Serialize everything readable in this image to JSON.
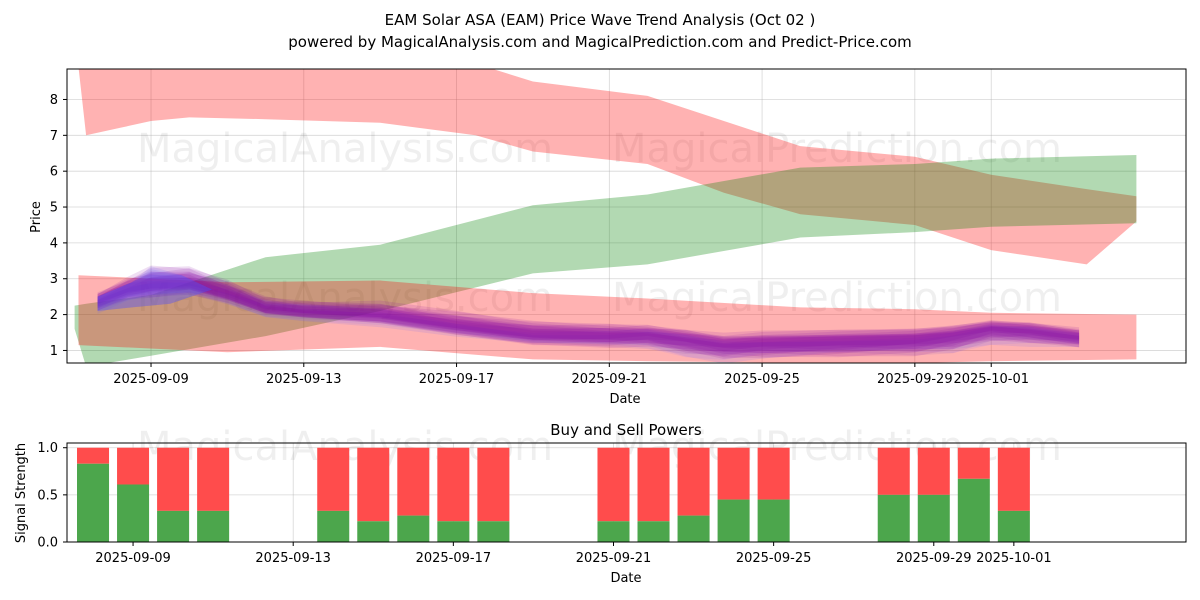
{
  "chart_data": [
    {
      "type": "area",
      "title": "EAM Solar ASA (EAM) Price Wave Trend Analysis (Oct 02 )",
      "subtitle": "powered by MagicalAnalysis.com and MagicalPrediction.com and Predict-Price.com",
      "xlabel": "Date",
      "ylabel": "Price",
      "ylim": [
        0.65,
        8.85
      ],
      "xlim": [
        -2.2,
        27.1
      ],
      "date_origin": "2025-09-09",
      "yticks": [
        1,
        2,
        3,
        4,
        5,
        6,
        7,
        8
      ],
      "xticks": [
        {
          "day": 0,
          "label": "2025-09-09"
        },
        {
          "day": 4,
          "label": "2025-09-13"
        },
        {
          "day": 8,
          "label": "2025-09-17"
        },
        {
          "day": 12,
          "label": "2025-09-21"
        },
        {
          "day": 16,
          "label": "2025-09-25"
        },
        {
          "day": 20,
          "label": "2025-09-29"
        },
        {
          "day": 22,
          "label": "2025-10-01"
        }
      ],
      "watermarks": [
        "MagicalAnalysis.com",
        "MagicalPrediction.com"
      ],
      "bands": [
        {
          "name": "upper-red-band",
          "color": "#ff0000",
          "opacity": 0.3,
          "x": [
            -1.9,
            -1.7,
            0,
            1,
            3,
            6,
            8.5,
            10,
            13,
            15,
            17,
            20,
            22,
            24.5,
            25.8
          ],
          "upper": [
            9.0,
            9.0,
            9.0,
            9.0,
            9.0,
            9.0,
            9.0,
            8.5,
            8.1,
            7.4,
            6.7,
            6.4,
            5.9,
            5.5,
            5.3
          ],
          "lower": [
            8.9,
            7.0,
            7.4,
            7.5,
            7.45,
            7.35,
            7.0,
            6.55,
            6.2,
            5.4,
            4.8,
            4.5,
            3.8,
            3.4,
            4.6
          ]
        },
        {
          "name": "green-band",
          "color": "#008000",
          "opacity": 0.3,
          "x": [
            -2.0,
            -1.7,
            0,
            3,
            6,
            10,
            13,
            17,
            20,
            22,
            25.8
          ],
          "upper": [
            2.25,
            2.3,
            2.55,
            3.6,
            3.95,
            5.05,
            5.35,
            6.1,
            6.2,
            6.35,
            6.45
          ],
          "lower": [
            1.6,
            0.55,
            0.85,
            1.4,
            2.1,
            3.15,
            3.4,
            4.15,
            4.3,
            4.45,
            4.55
          ]
        },
        {
          "name": "lower-red-band",
          "color": "#ff0000",
          "opacity": 0.3,
          "x": [
            -1.9,
            2,
            6,
            10,
            13,
            17,
            20,
            22,
            25.8
          ],
          "upper": [
            3.1,
            2.9,
            2.95,
            2.6,
            2.45,
            2.2,
            2.15,
            2.05,
            2.0
          ],
          "lower": [
            1.15,
            0.95,
            1.1,
            0.75,
            0.7,
            0.65,
            0.65,
            0.7,
            0.75
          ]
        }
      ],
      "waves": {
        "color": "#8000a0",
        "count": 12,
        "x": [
          -1.4,
          -0.6,
          0,
          1,
          2,
          3,
          4,
          6,
          8,
          10,
          12,
          13,
          14,
          15,
          16,
          18,
          20,
          21,
          22,
          23,
          24.3
        ],
        "center": [
          2.35,
          2.7,
          2.85,
          2.9,
          2.6,
          2.2,
          2.1,
          2.0,
          1.7,
          1.45,
          1.4,
          1.4,
          1.25,
          1.1,
          1.15,
          1.2,
          1.25,
          1.35,
          1.55,
          1.5,
          1.35
        ],
        "spread": [
          0.3,
          0.35,
          0.45,
          0.4,
          0.35,
          0.3,
          0.3,
          0.35,
          0.35,
          0.35,
          0.35,
          0.35,
          0.4,
          0.4,
          0.4,
          0.4,
          0.4,
          0.4,
          0.35,
          0.35,
          0.3
        ]
      }
    },
    {
      "type": "bar",
      "title": "Buy and Sell Powers",
      "xlabel": "Date",
      "ylabel": "Signal Strength",
      "ylim": [
        0,
        1.05
      ],
      "yticks": [
        0.0,
        0.5,
        1.0
      ],
      "xlim": [
        -1.65,
        26.3
      ],
      "date_origin": "2025-09-09",
      "xticks": [
        {
          "day": 0,
          "label": "2025-09-09"
        },
        {
          "day": 4,
          "label": "2025-09-13"
        },
        {
          "day": 8,
          "label": "2025-09-17"
        },
        {
          "day": 12,
          "label": "2025-09-21"
        },
        {
          "day": 16,
          "label": "2025-09-25"
        },
        {
          "day": 20,
          "label": "2025-09-29"
        },
        {
          "day": 22,
          "label": "2025-10-01"
        }
      ],
      "series": [
        {
          "name": "Buy",
          "color": "#4ca64c"
        },
        {
          "name": "Sell",
          "color": "#ff4c4c"
        }
      ],
      "watermarks": [
        "MagicalAnalysis.com",
        "MagicalPrediction.com"
      ],
      "bars": [
        {
          "day": -1,
          "buy": 0.83
        },
        {
          "day": 0,
          "buy": 0.61
        },
        {
          "day": 1,
          "buy": 0.33
        },
        {
          "day": 2,
          "buy": 0.33
        },
        {
          "day": 5,
          "buy": 0.33
        },
        {
          "day": 6,
          "buy": 0.22
        },
        {
          "day": 7,
          "buy": 0.28
        },
        {
          "day": 8,
          "buy": 0.22
        },
        {
          "day": 9,
          "buy": 0.22
        },
        {
          "day": 12,
          "buy": 0.22
        },
        {
          "day": 13,
          "buy": 0.22
        },
        {
          "day": 14,
          "buy": 0.28
        },
        {
          "day": 15,
          "buy": 0.45
        },
        {
          "day": 16,
          "buy": 0.45
        },
        {
          "day": 19,
          "buy": 0.5
        },
        {
          "day": 20,
          "buy": 0.5
        },
        {
          "day": 21,
          "buy": 0.67
        },
        {
          "day": 22,
          "buy": 0.33
        }
      ]
    }
  ]
}
